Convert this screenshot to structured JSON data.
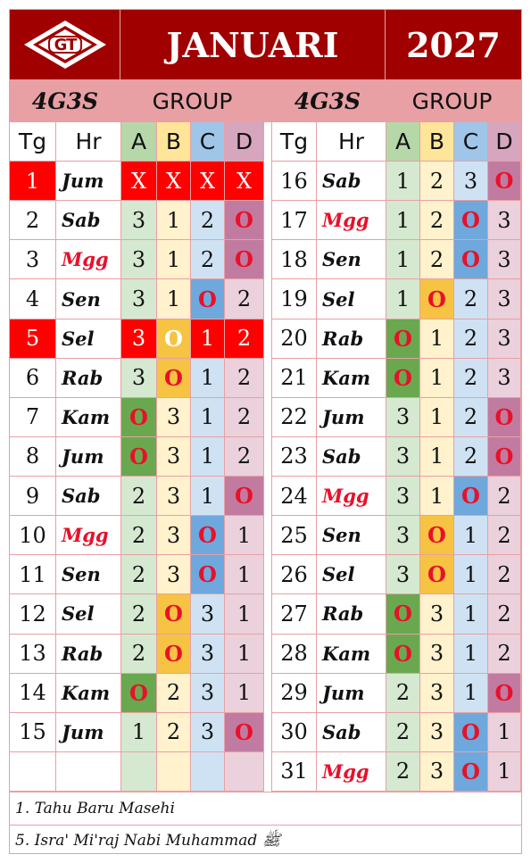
{
  "header": {
    "logo_text": "GT",
    "month": "JANUARI",
    "year": "2027"
  },
  "subheader": {
    "left_code": "4G3S",
    "left_group": "GROUP",
    "right_code": "4G3S",
    "right_group": "GROUP"
  },
  "columns": {
    "tg": "Tg",
    "hr": "Hr",
    "a": "A",
    "b": "B",
    "c": "C",
    "d": "D"
  },
  "left_rows": [
    {
      "tg": "1",
      "hr": "Jum",
      "a": "X",
      "b": "X",
      "c": "X",
      "d": "X",
      "holiday": true
    },
    {
      "tg": "2",
      "hr": "Sab",
      "a": "3",
      "b": "1",
      "c": "2",
      "d": "O"
    },
    {
      "tg": "3",
      "hr": "Mgg",
      "a": "3",
      "b": "1",
      "c": "2",
      "d": "O",
      "sunday": true
    },
    {
      "tg": "4",
      "hr": "Sen",
      "a": "3",
      "b": "1",
      "c": "O",
      "d": "2"
    },
    {
      "tg": "5",
      "hr": "Sel",
      "a": "3",
      "b": "O",
      "c": "1",
      "d": "2",
      "holiday": true
    },
    {
      "tg": "6",
      "hr": "Rab",
      "a": "3",
      "b": "O",
      "c": "1",
      "d": "2"
    },
    {
      "tg": "7",
      "hr": "Kam",
      "a": "O",
      "b": "3",
      "c": "1",
      "d": "2"
    },
    {
      "tg": "8",
      "hr": "Jum",
      "a": "O",
      "b": "3",
      "c": "1",
      "d": "2"
    },
    {
      "tg": "9",
      "hr": "Sab",
      "a": "2",
      "b": "3",
      "c": "1",
      "d": "O"
    },
    {
      "tg": "10",
      "hr": "Mgg",
      "a": "2",
      "b": "3",
      "c": "O",
      "d": "1",
      "sunday": true
    },
    {
      "tg": "11",
      "hr": "Sen",
      "a": "2",
      "b": "3",
      "c": "O",
      "d": "1"
    },
    {
      "tg": "12",
      "hr": "Sel",
      "a": "2",
      "b": "O",
      "c": "3",
      "d": "1"
    },
    {
      "tg": "13",
      "hr": "Rab",
      "a": "2",
      "b": "O",
      "c": "3",
      "d": "1"
    },
    {
      "tg": "14",
      "hr": "Kam",
      "a": "O",
      "b": "2",
      "c": "3",
      "d": "1"
    },
    {
      "tg": "15",
      "hr": "Jum",
      "a": "1",
      "b": "2",
      "c": "3",
      "d": "O"
    },
    {
      "tg": "",
      "hr": "",
      "a": "",
      "b": "",
      "c": "",
      "d": ""
    }
  ],
  "right_rows": [
    {
      "tg": "16",
      "hr": "Sab",
      "a": "1",
      "b": "2",
      "c": "3",
      "d": "O"
    },
    {
      "tg": "17",
      "hr": "Mgg",
      "a": "1",
      "b": "2",
      "c": "O",
      "d": "3",
      "sunday": true
    },
    {
      "tg": "18",
      "hr": "Sen",
      "a": "1",
      "b": "2",
      "c": "O",
      "d": "3"
    },
    {
      "tg": "19",
      "hr": "Sel",
      "a": "1",
      "b": "O",
      "c": "2",
      "d": "3"
    },
    {
      "tg": "20",
      "hr": "Rab",
      "a": "O",
      "b": "1",
      "c": "2",
      "d": "3"
    },
    {
      "tg": "21",
      "hr": "Kam",
      "a": "O",
      "b": "1",
      "c": "2",
      "d": "3"
    },
    {
      "tg": "22",
      "hr": "Jum",
      "a": "3",
      "b": "1",
      "c": "2",
      "d": "O"
    },
    {
      "tg": "23",
      "hr": "Sab",
      "a": "3",
      "b": "1",
      "c": "2",
      "d": "O"
    },
    {
      "tg": "24",
      "hr": "Mgg",
      "a": "3",
      "b": "1",
      "c": "O",
      "d": "2",
      "sunday": true
    },
    {
      "tg": "25",
      "hr": "Sen",
      "a": "3",
      "b": "O",
      "c": "1",
      "d": "2"
    },
    {
      "tg": "26",
      "hr": "Sel",
      "a": "3",
      "b": "O",
      "c": "1",
      "d": "2"
    },
    {
      "tg": "27",
      "hr": "Rab",
      "a": "O",
      "b": "3",
      "c": "1",
      "d": "2"
    },
    {
      "tg": "28",
      "hr": "Kam",
      "a": "O",
      "b": "3",
      "c": "1",
      "d": "2"
    },
    {
      "tg": "29",
      "hr": "Jum",
      "a": "2",
      "b": "3",
      "c": "1",
      "d": "O"
    },
    {
      "tg": "30",
      "hr": "Sab",
      "a": "2",
      "b": "3",
      "c": "O",
      "d": "1"
    },
    {
      "tg": "31",
      "hr": "Mgg",
      "a": "2",
      "b": "3",
      "c": "O",
      "d": "1",
      "sunday": true
    }
  ],
  "notes": [
    "1. Tahu Baru Masehi",
    "5. Isra' Mi'raj Nabi Muhammad ﷺ"
  ],
  "colors": {
    "header_bg": "#a00000",
    "subheader_bg": "#e8a0a4",
    "holiday_bg": "#ff0000",
    "off_text": "#e8102a",
    "group_a": "#d5e8d0",
    "group_b": "#fff2cc",
    "group_c": "#cfe2f3",
    "group_d": "#ead1dc"
  }
}
